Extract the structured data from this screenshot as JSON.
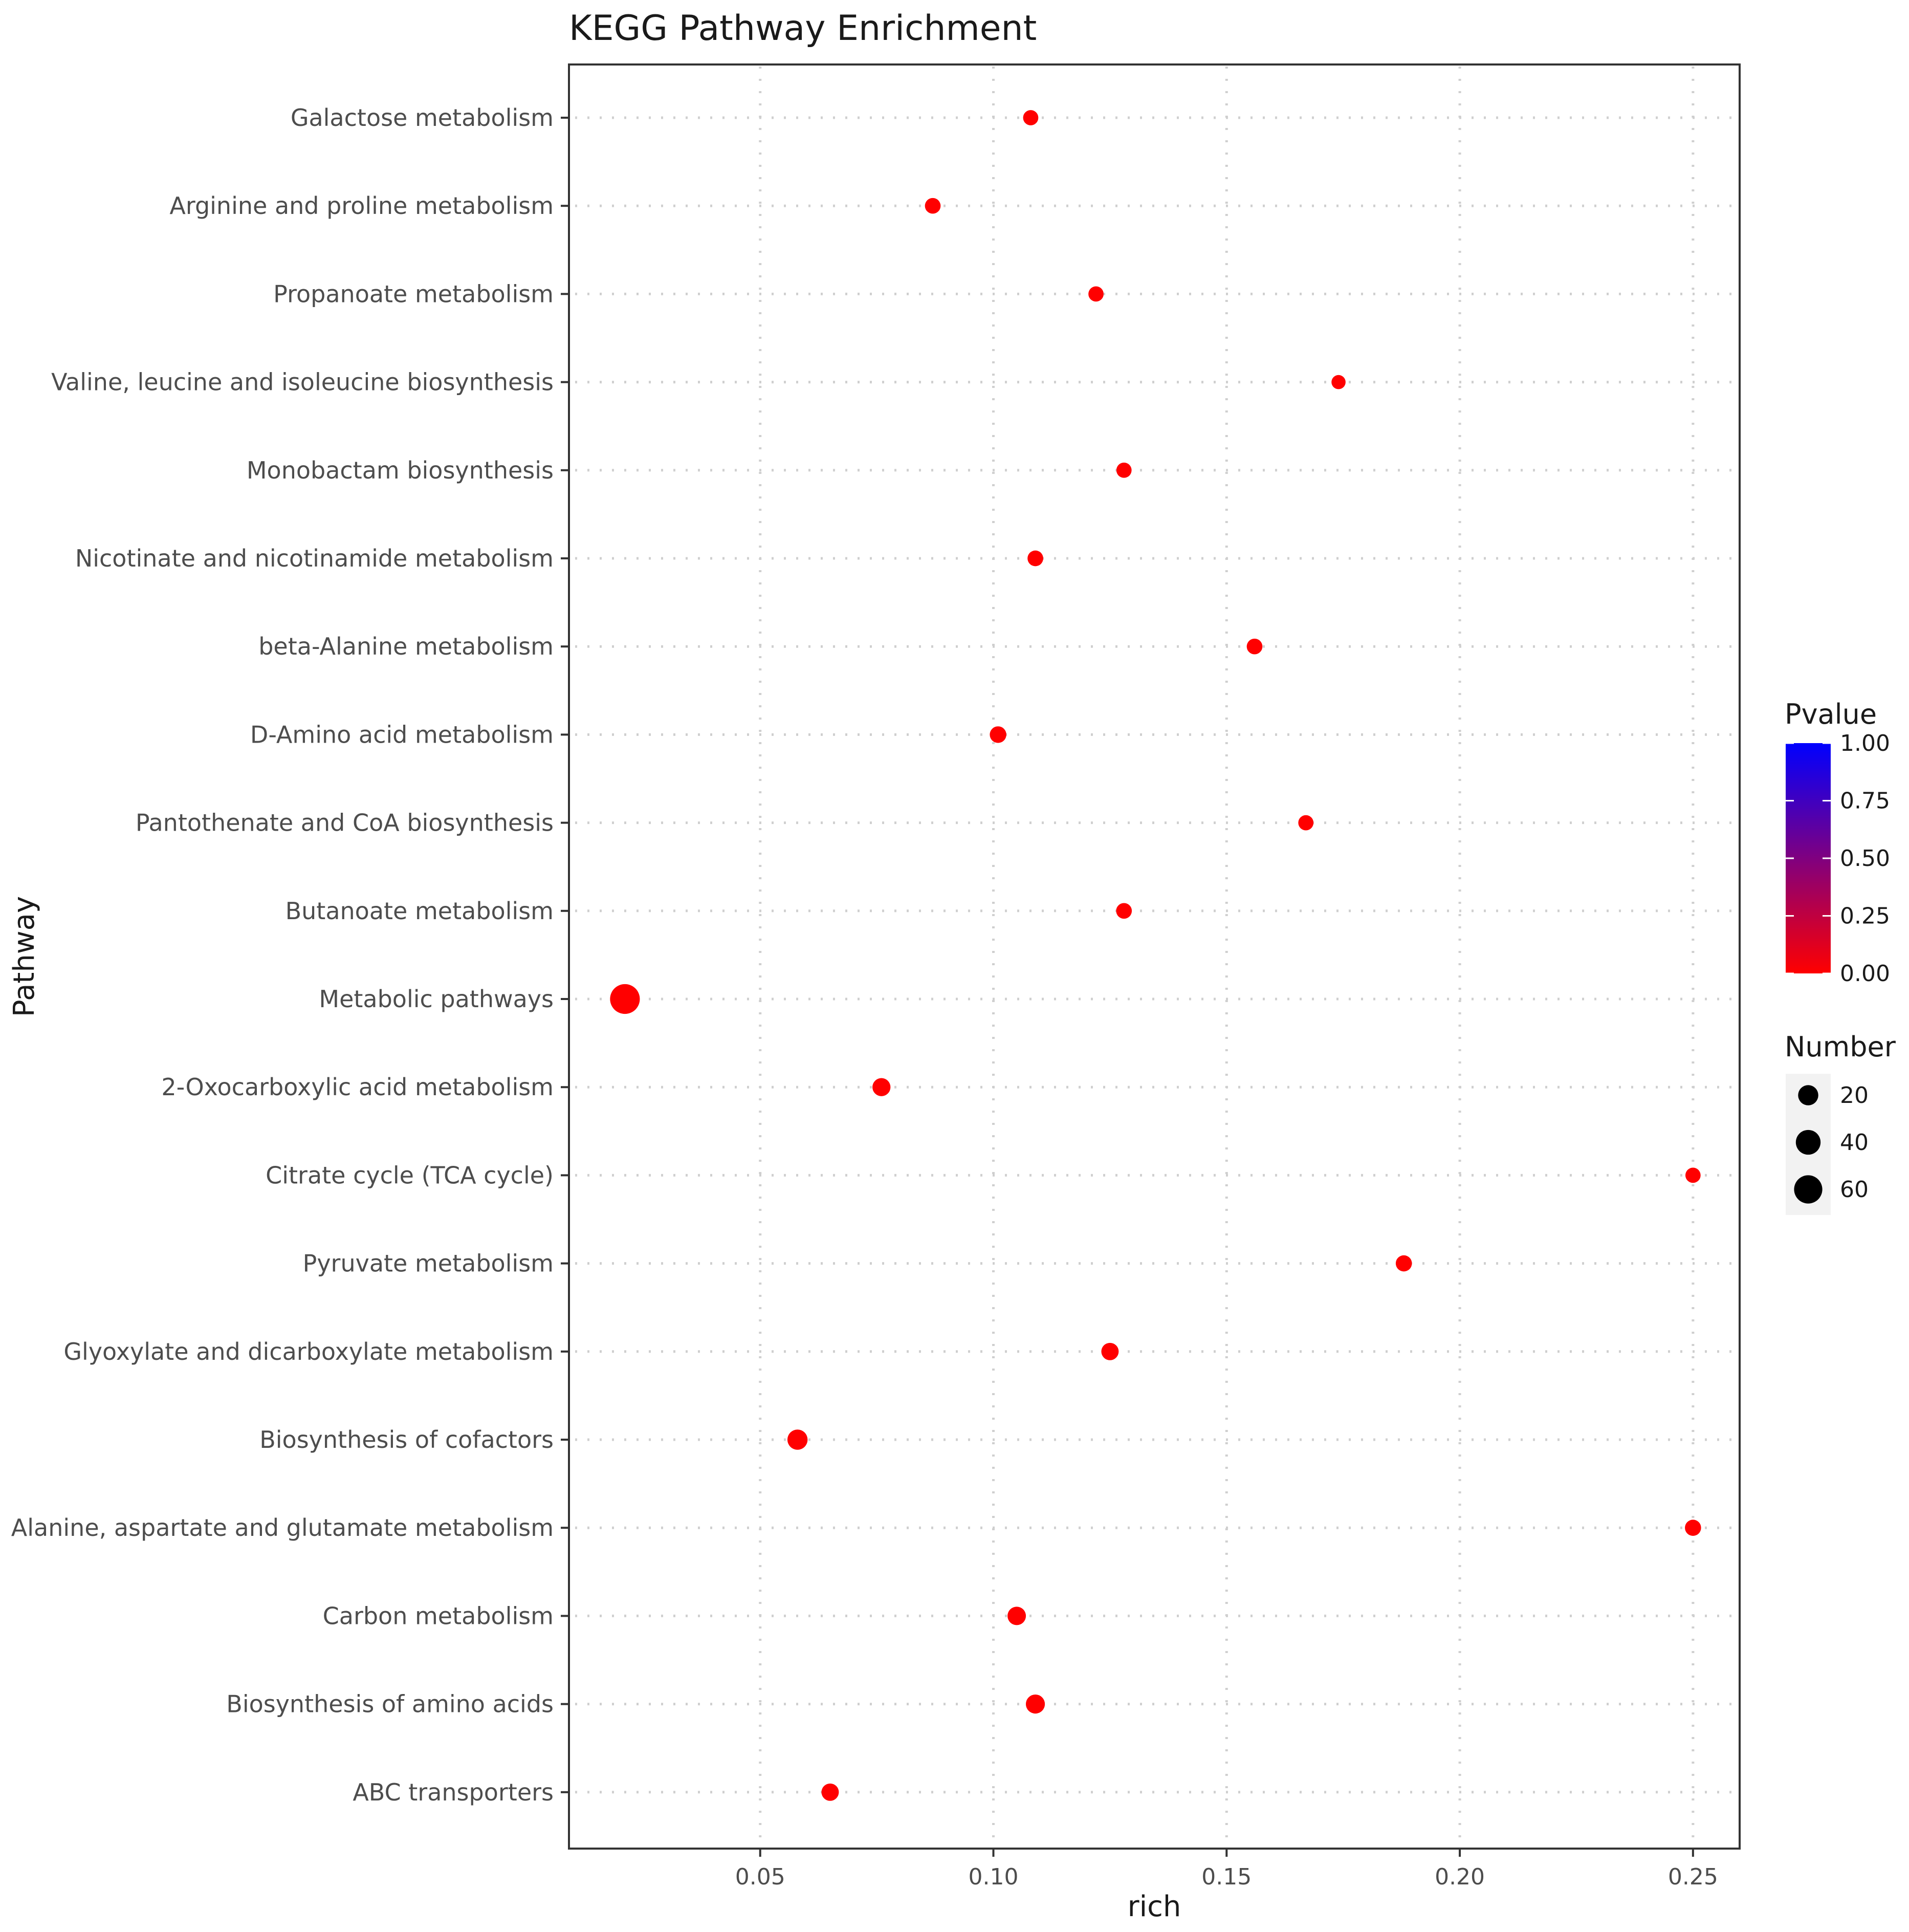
{
  "chart_data": {
    "type": "scatter",
    "title": "KEGG Pathway Enrichment",
    "xlabel": "rich",
    "ylabel": "Pathway",
    "xlim": [
      0.009,
      0.26
    ],
    "xticks": [
      0.05,
      0.1,
      0.15,
      0.2,
      0.25
    ],
    "xtick_labels": [
      "0.05",
      "0.10",
      "0.15",
      "0.20",
      "0.25"
    ],
    "grid": true,
    "categories": [
      "Galactose metabolism",
      "Arginine and proline metabolism",
      "Propanoate metabolism",
      "Valine, leucine and isoleucine biosynthesis",
      "Monobactam biosynthesis",
      "Nicotinate and nicotinamide metabolism",
      "beta-Alanine metabolism",
      "D-Amino acid metabolism",
      "Pantothenate and CoA biosynthesis",
      "Butanoate metabolism",
      "Metabolic pathways",
      "2-Oxocarboxylic acid metabolism",
      "Citrate cycle (TCA cycle)",
      "Pyruvate metabolism",
      "Glyoxylate and dicarboxylate metabolism",
      "Biosynthesis of cofactors",
      "Alanine, aspartate and glutamate metabolism",
      "Carbon metabolism",
      "Biosynthesis of amino acids",
      "ABC transporters"
    ],
    "points": [
      {
        "pathway": "Galactose metabolism",
        "rich": 0.108,
        "number": 6,
        "pvalue": 0.0
      },
      {
        "pathway": "Arginine and proline metabolism",
        "rich": 0.087,
        "number": 7,
        "pvalue": 0.0
      },
      {
        "pathway": "Propanoate metabolism",
        "rich": 0.122,
        "number": 6,
        "pvalue": 0.0
      },
      {
        "pathway": "Valine, leucine and isoleucine biosynthesis",
        "rich": 0.174,
        "number": 4,
        "pvalue": 0.0
      },
      {
        "pathway": "Monobactam biosynthesis",
        "rich": 0.128,
        "number": 6,
        "pvalue": 0.0
      },
      {
        "pathway": "Nicotinate and nicotinamide metabolism",
        "rich": 0.109,
        "number": 7,
        "pvalue": 0.0
      },
      {
        "pathway": "beta-Alanine metabolism",
        "rich": 0.156,
        "number": 7,
        "pvalue": 0.0
      },
      {
        "pathway": "D-Amino acid metabolism",
        "rich": 0.101,
        "number": 9,
        "pvalue": 0.0
      },
      {
        "pathway": "Pantothenate and CoA biosynthesis",
        "rich": 0.167,
        "number": 6,
        "pvalue": 0.0
      },
      {
        "pathway": "Butanoate metabolism",
        "rich": 0.128,
        "number": 7,
        "pvalue": 0.0
      },
      {
        "pathway": "Metabolic pathways",
        "rich": 0.021,
        "number": 70,
        "pvalue": 0.0
      },
      {
        "pathway": "2-Oxocarboxylic acid metabolism",
        "rich": 0.076,
        "number": 13,
        "pvalue": 0.0
      },
      {
        "pathway": "Citrate cycle (TCA cycle)",
        "rich": 0.25,
        "number": 6,
        "pvalue": 0.0
      },
      {
        "pathway": "Pyruvate metabolism",
        "rich": 0.188,
        "number": 8,
        "pvalue": 0.0
      },
      {
        "pathway": "Glyoxylate and dicarboxylate metabolism",
        "rich": 0.125,
        "number": 11,
        "pvalue": 0.0
      },
      {
        "pathway": "Biosynthesis of cofactors",
        "rich": 0.058,
        "number": 20,
        "pvalue": 0.0
      },
      {
        "pathway": "Alanine, aspartate and glutamate metabolism",
        "rich": 0.25,
        "number": 8,
        "pvalue": 0.0
      },
      {
        "pathway": "Carbon metabolism",
        "rich": 0.105,
        "number": 14,
        "pvalue": 0.0
      },
      {
        "pathway": "Biosynthesis of amino acids",
        "rich": 0.109,
        "number": 16,
        "pvalue": 0.0
      },
      {
        "pathway": "ABC transporters",
        "rich": 0.065,
        "number": 11,
        "pvalue": 0.0
      }
    ],
    "legend": {
      "placement": "right",
      "color": {
        "title": "Pvalue",
        "ticks": [
          1.0,
          0.75,
          0.5,
          0.25,
          0.0
        ],
        "tick_labels": [
          "1.00",
          "0.75",
          "0.50",
          "0.25",
          "0.00"
        ],
        "low_color": "#ff0000",
        "high_color": "#0000ff"
      },
      "size": {
        "title": "Number",
        "values": [
          20,
          40,
          60
        ],
        "labels": [
          "20",
          "40",
          "60"
        ]
      }
    },
    "colors": {
      "point": "#ff0000",
      "panel_border": "#333333",
      "grid": "#cfcfcf",
      "text": "#4d4d4d",
      "title_text": "#1a1a1a",
      "legend_key_bg": "#f2f2f2"
    }
  }
}
